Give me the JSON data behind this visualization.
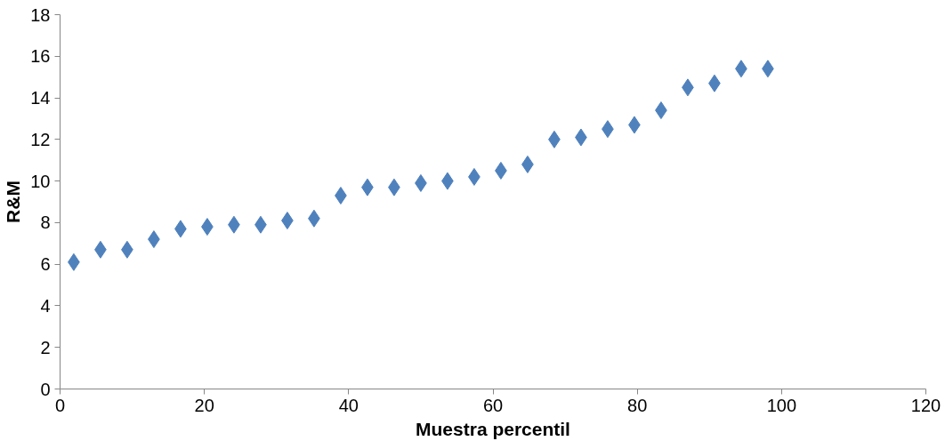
{
  "chart_data": {
    "type": "scatter",
    "xlabel": "Muestra percentil",
    "ylabel": "R&M",
    "marker": "diamond",
    "grid": false,
    "x": [
      1.9,
      5.6,
      9.3,
      13.0,
      16.7,
      20.4,
      24.1,
      27.8,
      31.5,
      35.2,
      38.9,
      42.6,
      46.3,
      50.0,
      53.7,
      57.4,
      61.1,
      64.8,
      68.5,
      72.2,
      75.9,
      79.6,
      83.3,
      87.0,
      90.7,
      94.4,
      98.1
    ],
    "series": [
      {
        "color": "#4f81bd",
        "values": [
          6.1,
          6.7,
          6.7,
          7.2,
          7.7,
          7.8,
          7.9,
          7.9,
          8.1,
          8.2,
          9.3,
          9.7,
          9.7,
          9.9,
          10.0,
          10.2,
          10.5,
          10.8,
          12.0,
          12.1,
          12.5,
          12.7,
          13.4,
          14.5,
          14.7,
          15.4,
          15.4
        ]
      }
    ],
    "xlim": [
      0,
      120
    ],
    "xticks": [
      0,
      20,
      40,
      60,
      80,
      100,
      120
    ],
    "ylim": [
      0,
      18
    ],
    "yticks": [
      0,
      2,
      4,
      6,
      8,
      10,
      12,
      14,
      16,
      18
    ]
  }
}
